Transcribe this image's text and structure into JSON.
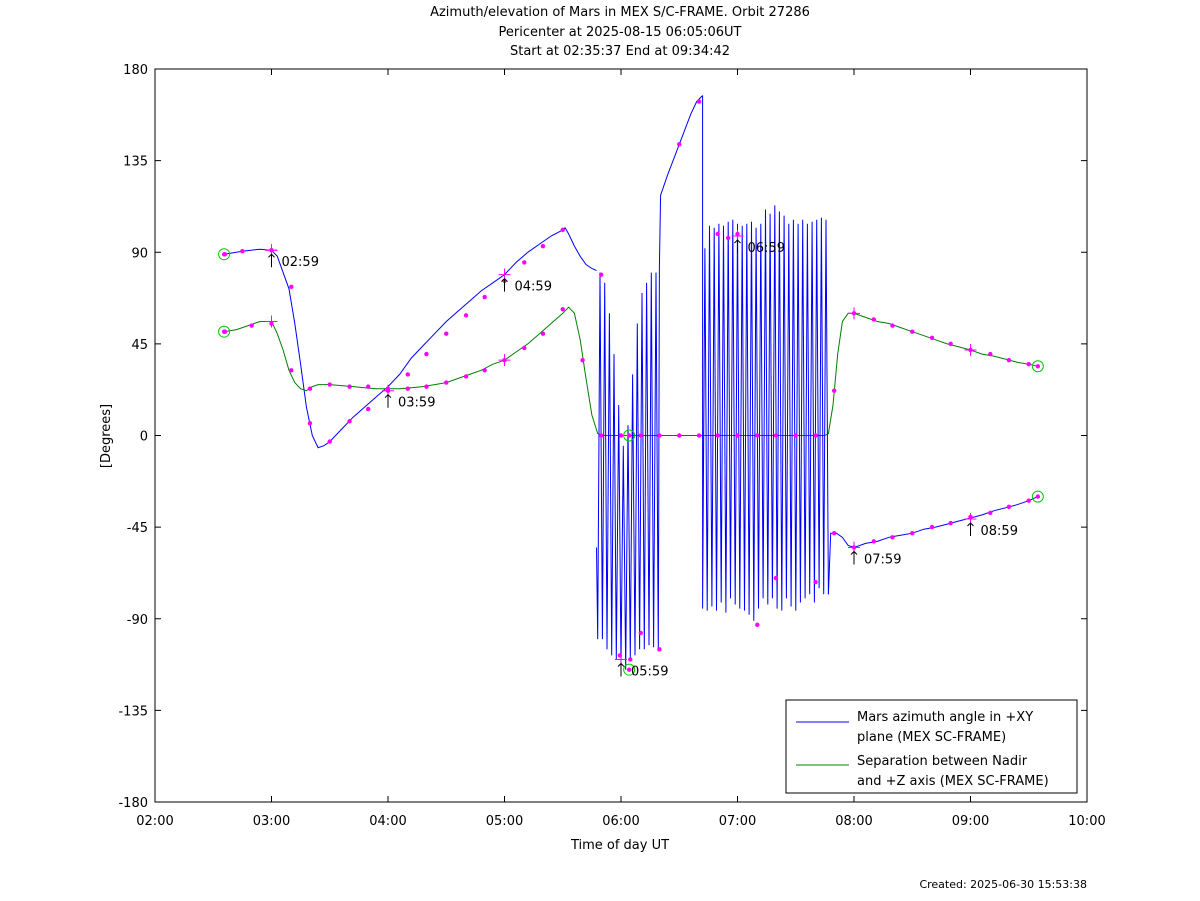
{
  "chart_data": {
    "type": "line",
    "title": [
      "Azimuth/elevation of Mars in MEX S/C-FRAME.  Orbit 27286",
      "Pericenter at 2025-08-15 06:05:06UT",
      "Start at 02:35:37 End at 09:34:42"
    ],
    "xlabel": "Time of day UT",
    "ylabel": "[Degrees]",
    "xlim": [
      2.0,
      10.0
    ],
    "ylim": [
      -180,
      180
    ],
    "xticks": [
      2,
      3,
      4,
      5,
      6,
      7,
      8,
      9,
      10
    ],
    "xtick_labels": [
      "02:00",
      "03:00",
      "04:00",
      "05:00",
      "06:00",
      "07:00",
      "08:00",
      "09:00",
      "10:00"
    ],
    "yticks": [
      180,
      135,
      90,
      45,
      0,
      -45,
      -90,
      -135,
      -180
    ],
    "ytick_labels": [
      "180",
      "135",
      "90",
      "45",
      "0",
      "-45",
      "-90",
      "-135",
      "-180"
    ],
    "legend_position": "bottom-right",
    "colors": {
      "azimuth": "#0000ff",
      "separation": "#008000",
      "marker": "#ff00ff",
      "endpoint": "#00cc00"
    },
    "series": [
      {
        "name": "Mars azimuth angle in +XY plane (MEX SC-FRAME)",
        "legend_lines": [
          "Mars azimuth angle in +XY",
          "plane (MEX SC-FRAME)"
        ],
        "color": "#0000ff",
        "x": [
          2.593,
          2.75,
          2.9,
          3.0,
          3.05,
          3.15,
          3.2,
          3.25,
          3.3,
          3.35,
          3.4,
          3.45,
          3.5,
          3.6,
          3.7,
          3.8,
          3.9,
          4.0,
          4.1,
          4.2,
          4.3,
          4.4,
          4.5,
          4.6,
          4.7,
          4.8,
          4.9,
          5.0,
          5.1,
          5.2,
          5.3,
          5.4,
          5.5,
          5.52,
          5.55,
          5.6,
          5.65,
          5.7,
          5.75,
          5.79
        ],
        "y": [
          89,
          90.5,
          91.5,
          91,
          88,
          72,
          55,
          35,
          14,
          0,
          -6,
          -5,
          -3,
          3,
          9,
          14,
          19,
          24,
          30,
          38,
          44,
          50,
          56,
          61,
          66,
          71,
          75,
          79,
          85,
          90,
          94,
          98,
          101,
          102,
          99,
          93,
          88,
          84,
          82,
          81
        ]
      },
      {
        "name": "Separation between Nadir and +Z axis (MEX SC-FRAME)",
        "legend_lines": [
          "Separation between Nadir",
          "and +Z axis (MEX SC-FRAME)"
        ],
        "color": "#008000",
        "x": [
          2.593,
          2.7,
          2.8,
          2.9,
          3.0,
          3.05,
          3.1,
          3.15,
          3.2,
          3.25,
          3.3,
          3.35,
          3.4,
          3.5,
          3.6,
          3.7,
          3.8,
          3.9,
          4.0,
          4.1,
          4.2,
          4.3,
          4.4,
          4.5,
          4.6,
          4.7,
          4.8,
          4.9,
          5.0,
          5.1,
          5.2,
          5.3,
          5.4,
          5.5,
          5.55,
          5.6,
          5.65,
          5.7,
          5.75,
          5.8,
          5.83,
          5.86,
          5.9,
          6.0,
          6.1,
          6.2,
          6.3,
          6.4,
          6.5,
          6.6,
          6.7,
          6.8,
          6.9,
          7.0,
          7.1,
          7.2,
          7.3,
          7.4,
          7.5,
          7.6,
          7.7,
          7.75,
          7.78,
          7.82,
          7.86,
          7.9,
          7.95,
          8.0,
          8.1,
          8.2,
          8.3,
          8.4,
          8.5,
          8.6,
          8.7,
          8.8,
          8.9,
          9.0,
          9.1,
          9.2,
          9.3,
          9.4,
          9.5,
          9.578
        ],
        "y": [
          51,
          52,
          54,
          56,
          56,
          50,
          42,
          32,
          26,
          23,
          22,
          24,
          25,
          25,
          24.5,
          24,
          23.5,
          23,
          23,
          23,
          23.5,
          24,
          25,
          26,
          28,
          30,
          32,
          35,
          37,
          41,
          45,
          50,
          55,
          60,
          63,
          60,
          47,
          28,
          10,
          1,
          0,
          0,
          0,
          0,
          0,
          0,
          0,
          0,
          0,
          0,
          0,
          0,
          0,
          0,
          0,
          0,
          0,
          0,
          0,
          0,
          0,
          0,
          1,
          15,
          40,
          56,
          60,
          60,
          58,
          56,
          55,
          53,
          51,
          49,
          47,
          45,
          43.5,
          42,
          40,
          39,
          37.5,
          36,
          35,
          34
        ]
      },
      {
        "name": "Mars azimuth angle (oscillating segment 1)",
        "color": "#0000ff",
        "x": [
          5.79,
          5.8,
          5.82,
          5.84,
          5.86,
          5.88,
          5.9,
          5.92,
          5.94,
          5.96,
          5.98,
          6.0,
          6.02,
          6.04,
          6.06,
          6.08,
          6.1,
          6.12,
          6.14,
          6.16,
          6.18,
          6.2,
          6.22,
          6.24,
          6.26,
          6.28,
          6.3,
          6.32,
          6.33
        ],
        "y": [
          -55,
          -100,
          80,
          -100,
          75,
          -105,
          60,
          -108,
          40,
          -110,
          15,
          -112,
          -5,
          -115,
          5,
          -110,
          30,
          -108,
          55,
          -105,
          70,
          -105,
          75,
          -103,
          80,
          -104,
          80,
          -106,
          83
        ]
      },
      {
        "name": "Mars azimuth angle (jump segment)",
        "color": "#0000ff",
        "x": [
          6.33,
          6.34,
          6.4,
          6.5,
          6.6,
          6.65,
          6.7
        ],
        "y": [
          83,
          118,
          128,
          143,
          158,
          164,
          167
        ]
      },
      {
        "name": "Mars azimuth angle (oscillating segment 2)",
        "color": "#0000ff",
        "x": [
          6.7,
          6.7,
          6.72,
          6.74,
          6.76,
          6.78,
          6.8,
          6.82,
          6.84,
          6.86,
          6.88,
          6.9,
          6.92,
          6.94,
          6.96,
          6.98,
          7.0,
          7.02,
          7.04,
          7.06,
          7.08,
          7.1,
          7.12,
          7.14,
          7.16,
          7.18,
          7.2,
          7.22,
          7.24,
          7.26,
          7.28,
          7.3,
          7.32,
          7.34,
          7.36,
          7.38,
          7.4,
          7.42,
          7.44,
          7.46,
          7.48,
          7.5,
          7.52,
          7.54,
          7.56,
          7.58,
          7.6,
          7.62,
          7.64,
          7.66,
          7.68,
          7.7,
          7.72,
          7.74,
          7.76,
          7.78
        ],
        "y": [
          167,
          -85,
          92,
          -86,
          103,
          -84,
          102,
          -86,
          104,
          -82,
          103,
          -87,
          105,
          -80,
          106,
          -83,
          104,
          -85,
          103,
          -86,
          104,
          -88,
          105,
          -91,
          102,
          -85,
          104,
          -80,
          111,
          -83,
          109,
          -80,
          113,
          -85,
          110,
          -86,
          108,
          -80,
          104,
          -84,
          106,
          -86,
          104,
          -82,
          106,
          -80,
          104,
          -78,
          105,
          -82,
          106,
          -75,
          107,
          -78,
          106,
          -78
        ]
      },
      {
        "name": "Mars azimuth angle (late segment)",
        "color": "#0000ff",
        "x": [
          7.78,
          7.8,
          7.85,
          7.9,
          7.95,
          8.0,
          8.1,
          8.2,
          8.3,
          8.4,
          8.5,
          8.6,
          8.7,
          8.8,
          8.9,
          9.0,
          9.1,
          9.2,
          9.3,
          9.4,
          9.5,
          9.578
        ],
        "y": [
          -78,
          -48,
          -48,
          -50,
          -54,
          -55,
          -53,
          -52,
          -50,
          -49,
          -48,
          -46,
          -45,
          -43.5,
          -42,
          -40.5,
          -39,
          -37,
          -35.5,
          -34,
          -32,
          -30
        ]
      }
    ],
    "markers": {
      "dots": [
        [
          2.6,
          89
        ],
        [
          2.75,
          90.5
        ],
        [
          3.0,
          91
        ],
        [
          3.17,
          73
        ],
        [
          3.33,
          6
        ],
        [
          3.5,
          -3
        ],
        [
          3.67,
          7
        ],
        [
          3.83,
          13
        ],
        [
          4.0,
          22
        ],
        [
          4.17,
          30
        ],
        [
          4.33,
          40
        ],
        [
          4.5,
          50
        ],
        [
          4.67,
          59
        ],
        [
          4.83,
          68
        ],
        [
          5.0,
          76
        ],
        [
          5.17,
          85
        ],
        [
          5.33,
          93
        ],
        [
          5.5,
          101
        ],
        [
          2.6,
          51
        ],
        [
          2.83,
          54
        ],
        [
          3.0,
          55
        ],
        [
          3.17,
          32
        ],
        [
          3.33,
          23
        ],
        [
          3.5,
          25
        ],
        [
          3.67,
          24
        ],
        [
          3.83,
          24
        ],
        [
          4.0,
          23
        ],
        [
          4.17,
          23
        ],
        [
          4.33,
          24
        ],
        [
          4.5,
          26
        ],
        [
          4.67,
          29
        ],
        [
          4.83,
          32
        ],
        [
          5.0,
          37
        ],
        [
          5.17,
          43
        ],
        [
          5.33,
          50
        ],
        [
          5.5,
          62
        ],
        [
          5.67,
          37
        ],
        [
          5.83,
          0
        ],
        [
          6.0,
          0
        ],
        [
          6.17,
          0
        ],
        [
          6.33,
          0
        ],
        [
          6.5,
          0
        ],
        [
          6.67,
          0
        ],
        [
          6.83,
          0
        ],
        [
          7.0,
          0
        ],
        [
          7.17,
          0
        ],
        [
          7.33,
          0
        ],
        [
          7.5,
          0
        ],
        [
          7.67,
          0
        ],
        [
          7.83,
          22
        ],
        [
          8.0,
          60
        ],
        [
          8.17,
          57
        ],
        [
          8.33,
          54
        ],
        [
          8.5,
          51
        ],
        [
          8.67,
          48
        ],
        [
          8.83,
          45
        ],
        [
          9.0,
          42
        ],
        [
          9.17,
          40
        ],
        [
          9.33,
          37
        ],
        [
          9.5,
          35
        ],
        [
          7.83,
          -48
        ],
        [
          8.0,
          -55
        ],
        [
          8.17,
          -52
        ],
        [
          8.33,
          -50
        ],
        [
          8.5,
          -48
        ],
        [
          8.67,
          -45
        ],
        [
          8.83,
          -43
        ],
        [
          9.0,
          -40
        ],
        [
          9.17,
          -38
        ],
        [
          9.33,
          -35
        ],
        [
          9.5,
          -32
        ],
        [
          5.83,
          79
        ],
        [
          5.99,
          -108
        ],
        [
          6.08,
          -110
        ],
        [
          6.17,
          -97
        ],
        [
          6.33,
          -105
        ],
        [
          6.5,
          143
        ],
        [
          6.67,
          164
        ],
        [
          6.83,
          99
        ],
        [
          6.92,
          97
        ],
        [
          7.0,
          99
        ],
        [
          7.17,
          -93
        ],
        [
          7.33,
          -70
        ],
        [
          7.67,
          -72
        ]
      ],
      "crosses": [
        [
          3.0,
          91
        ],
        [
          3.0,
          56
        ],
        [
          4.0,
          22
        ],
        [
          5.0,
          79
        ],
        [
          5.0,
          37
        ],
        [
          6.0,
          -110
        ],
        [
          7.0,
          98
        ],
        [
          8.0,
          60
        ],
        [
          8.0,
          -55
        ],
        [
          9.0,
          42
        ],
        [
          9.0,
          -41
        ],
        [
          3.0,
          91
        ]
      ],
      "endpoints": [
        [
          2.593,
          89
        ],
        [
          2.593,
          51
        ],
        [
          9.578,
          34
        ],
        [
          9.578,
          -30
        ],
        [
          6.07,
          -115
        ],
        [
          6.07,
          0
        ]
      ]
    },
    "annotations": [
      {
        "label": "02:59",
        "x": 3.0,
        "y": 91
      },
      {
        "label": "03:59",
        "x": 4.0,
        "y": 22
      },
      {
        "label": "04:59",
        "x": 5.0,
        "y": 79
      },
      {
        "label": "05:59",
        "x": 6.0,
        "y": -110
      },
      {
        "label": "06:59",
        "x": 7.0,
        "y": 98
      },
      {
        "label": "07:59",
        "x": 8.0,
        "y": -55
      },
      {
        "label": "08:59",
        "x": 9.0,
        "y": -41
      }
    ],
    "created": "Created: 2025-06-30 15:53:38"
  }
}
